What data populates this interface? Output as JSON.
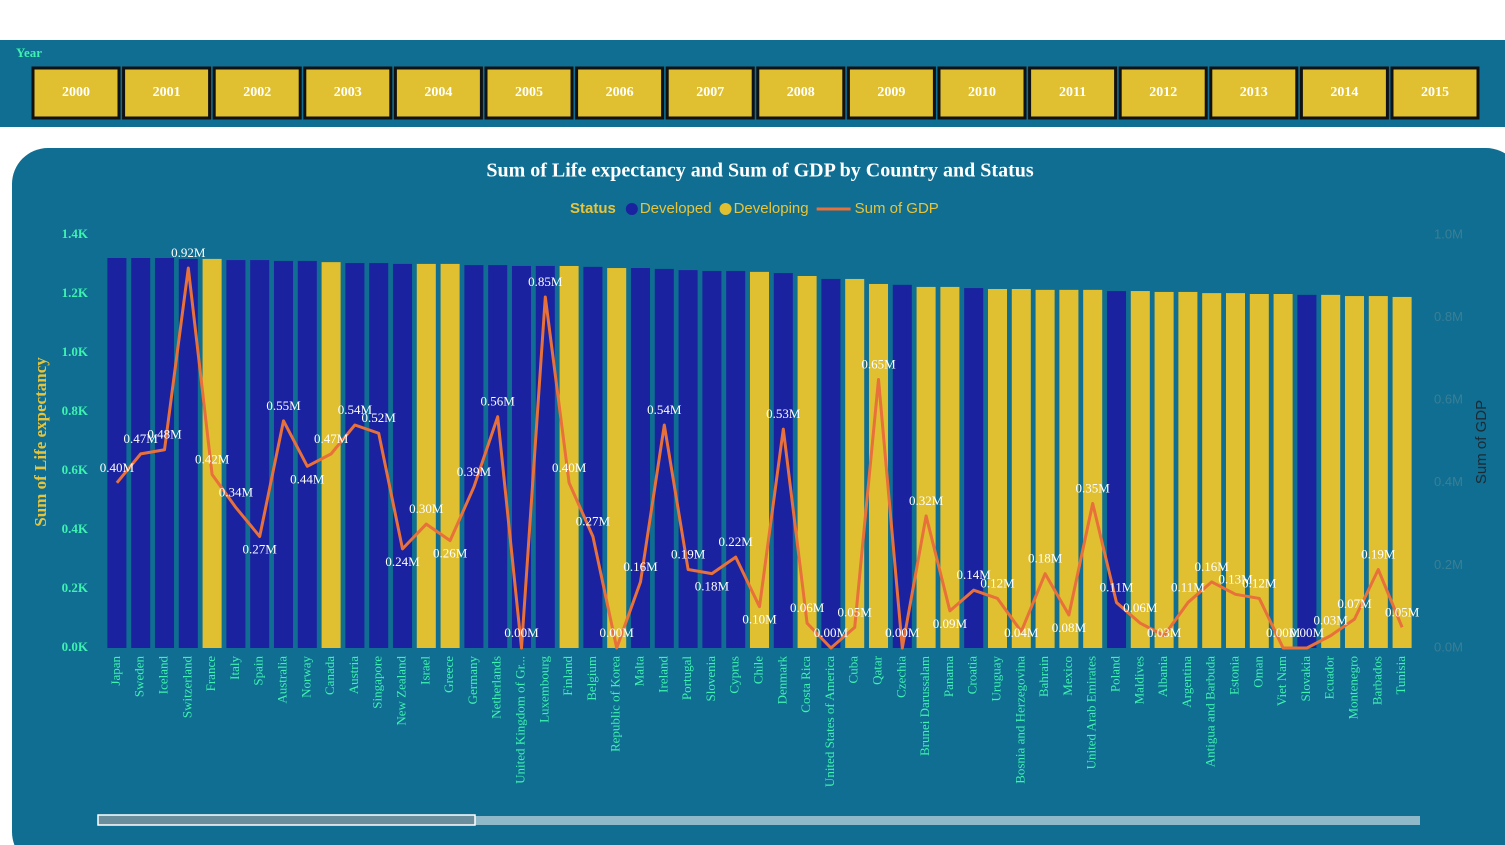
{
  "slicer": {
    "title": "Year",
    "items": [
      "2000",
      "2001",
      "2002",
      "2003",
      "2004",
      "2005",
      "2006",
      "2007",
      "2008",
      "2009",
      "2010",
      "2011",
      "2012",
      "2013",
      "2014",
      "2015"
    ]
  },
  "chart_data": {
    "type": "bar",
    "title": "Sum of Life expectancy and Sum of GDP by Country and Status",
    "legend_title": "Status",
    "ylabel": "Sum of Life expectancy",
    "y2label": "Sum of GDP",
    "categories": [
      "Japan",
      "Sweden",
      "Iceland",
      "Switzerland",
      "France",
      "Italy",
      "Spain",
      "Australia",
      "Norway",
      "Canada",
      "Austria",
      "Singapore",
      "New Zealand",
      "Israel",
      "Greece",
      "Germany",
      "Netherlands",
      "United Kingdom of Gr...",
      "Luxembourg",
      "Finland",
      "Belgium",
      "Republic of Korea",
      "Malta",
      "Ireland",
      "Portugal",
      "Slovenia",
      "Cyprus",
      "Chile",
      "Denmark",
      "Costa Rica",
      "United States of America",
      "Cuba",
      "Qatar",
      "Czechia",
      "Brunei Darussalam",
      "Panama",
      "Croatia",
      "Uruguay",
      "Bosnia and Herzegovina",
      "Bahrain",
      "Mexico",
      "United Arab Emirates",
      "Poland",
      "Maldives",
      "Albania",
      "Argentina",
      "Antigua and Barbuda",
      "Estonia",
      "Oman",
      "Viet Nam",
      "Slovakia",
      "Ecuador",
      "Montenegro",
      "Barbados",
      "Tunisia"
    ],
    "series": [
      {
        "name": "Developed",
        "color": "#1a22a0",
        "values": [
          1322,
          1322,
          1322,
          1319,
          null,
          1315,
          1315,
          1312,
          1312,
          null,
          1305,
          1305,
          1302,
          null,
          null,
          1298,
          1298,
          1295,
          1295,
          null,
          1292,
          null,
          1288,
          1285,
          1281,
          1278,
          1278,
          null,
          1271,
          null,
          1251,
          null,
          null,
          1231,
          null,
          null,
          1220,
          null,
          null,
          null,
          null,
          null,
          1210,
          null,
          null,
          null,
          null,
          null,
          null,
          null,
          1197,
          null,
          null,
          null,
          null
        ]
      },
      {
        "name": "Developing",
        "color": "#e0c030",
        "values": [
          null,
          null,
          null,
          null,
          1319,
          null,
          null,
          null,
          null,
          1308,
          null,
          null,
          null,
          1302,
          1302,
          null,
          null,
          null,
          null,
          1295,
          null,
          1288,
          null,
          null,
          null,
          null,
          null,
          1275,
          null,
          1261,
          null,
          1251,
          1234,
          null,
          1224,
          1224,
          null,
          1217,
          1217,
          1214,
          1214,
          1214,
          null,
          1210,
          1207,
          1207,
          1203,
          1203,
          1200,
          1200,
          null,
          1197,
          1193,
          1193,
          1190
        ]
      },
      {
        "name": "Sum of GDP",
        "type": "line",
        "axis": "y2",
        "color": "#e8703a",
        "values": [
          400000,
          470000,
          480000,
          920000,
          420000,
          340000,
          270000,
          550000,
          440000,
          470000,
          540000,
          520000,
          240000,
          300000,
          260000,
          390000,
          560000,
          0,
          850000,
          400000,
          270000,
          0,
          160000,
          540000,
          190000,
          180000,
          220000,
          100000,
          530000,
          60000,
          0,
          50000,
          650000,
          0,
          320000,
          90000,
          140000,
          120000,
          40000,
          180000,
          80000,
          350000,
          110000,
          60000,
          30000,
          110000,
          160000,
          130000,
          120000,
          0,
          0,
          30000,
          70000,
          190000,
          50000
        ],
        "value_labels": [
          "0.40M",
          "0.47M",
          "0.48M",
          "0.92M",
          "0.42M",
          "0.34M",
          "0.27M",
          "0.55M",
          "0.44M",
          "0.47M",
          "0.54M",
          "0.52M",
          "0.24M",
          "0.30M",
          "0.26M",
          "0.39M",
          "0.56M",
          "0.00M",
          "0.85M",
          "0.40M",
          "0.27M",
          "0.00M",
          "0.16M",
          "0.54M",
          "0.19M",
          "0.18M",
          "0.22M",
          "0.10M",
          "0.53M",
          "0.06M",
          "0.00M",
          "0.05M",
          "0.65M",
          "0.00M",
          "0.32M",
          "0.09M",
          "0.14M",
          "0.12M",
          "0.04M",
          "0.18M",
          "0.08M",
          "0.35M",
          "0.11M",
          "0.06M",
          "0.03M",
          "0.11M",
          "0.16M",
          "0.13M",
          "0.12M",
          "0.00M",
          "0.00M",
          "0.03M",
          "0.07M",
          "0.19M",
          "0.05M"
        ]
      }
    ],
    "ylim": [
      0,
      1400
    ],
    "yticks": [
      {
        "value": 0,
        "label": "0.0K"
      },
      {
        "value": 200,
        "label": "0.2K"
      },
      {
        "value": 400,
        "label": "0.4K"
      },
      {
        "value": 600,
        "label": "0.6K"
      },
      {
        "value": 800,
        "label": "0.8K"
      },
      {
        "value": 1000,
        "label": "1.0K"
      },
      {
        "value": 1200,
        "label": "1.2K"
      },
      {
        "value": 1400,
        "label": "1.4K"
      }
    ],
    "y2lim": [
      0,
      1000000
    ],
    "y2ticks": [
      {
        "value": 0,
        "label": "0.0M"
      },
      {
        "value": 200000,
        "label": "0.2M"
      },
      {
        "value": 400000,
        "label": "0.4M"
      },
      {
        "value": 600000,
        "label": "0.6M"
      },
      {
        "value": 800000,
        "label": "0.8M"
      },
      {
        "value": 1000000,
        "label": "1.0M"
      }
    ],
    "grid": false
  }
}
